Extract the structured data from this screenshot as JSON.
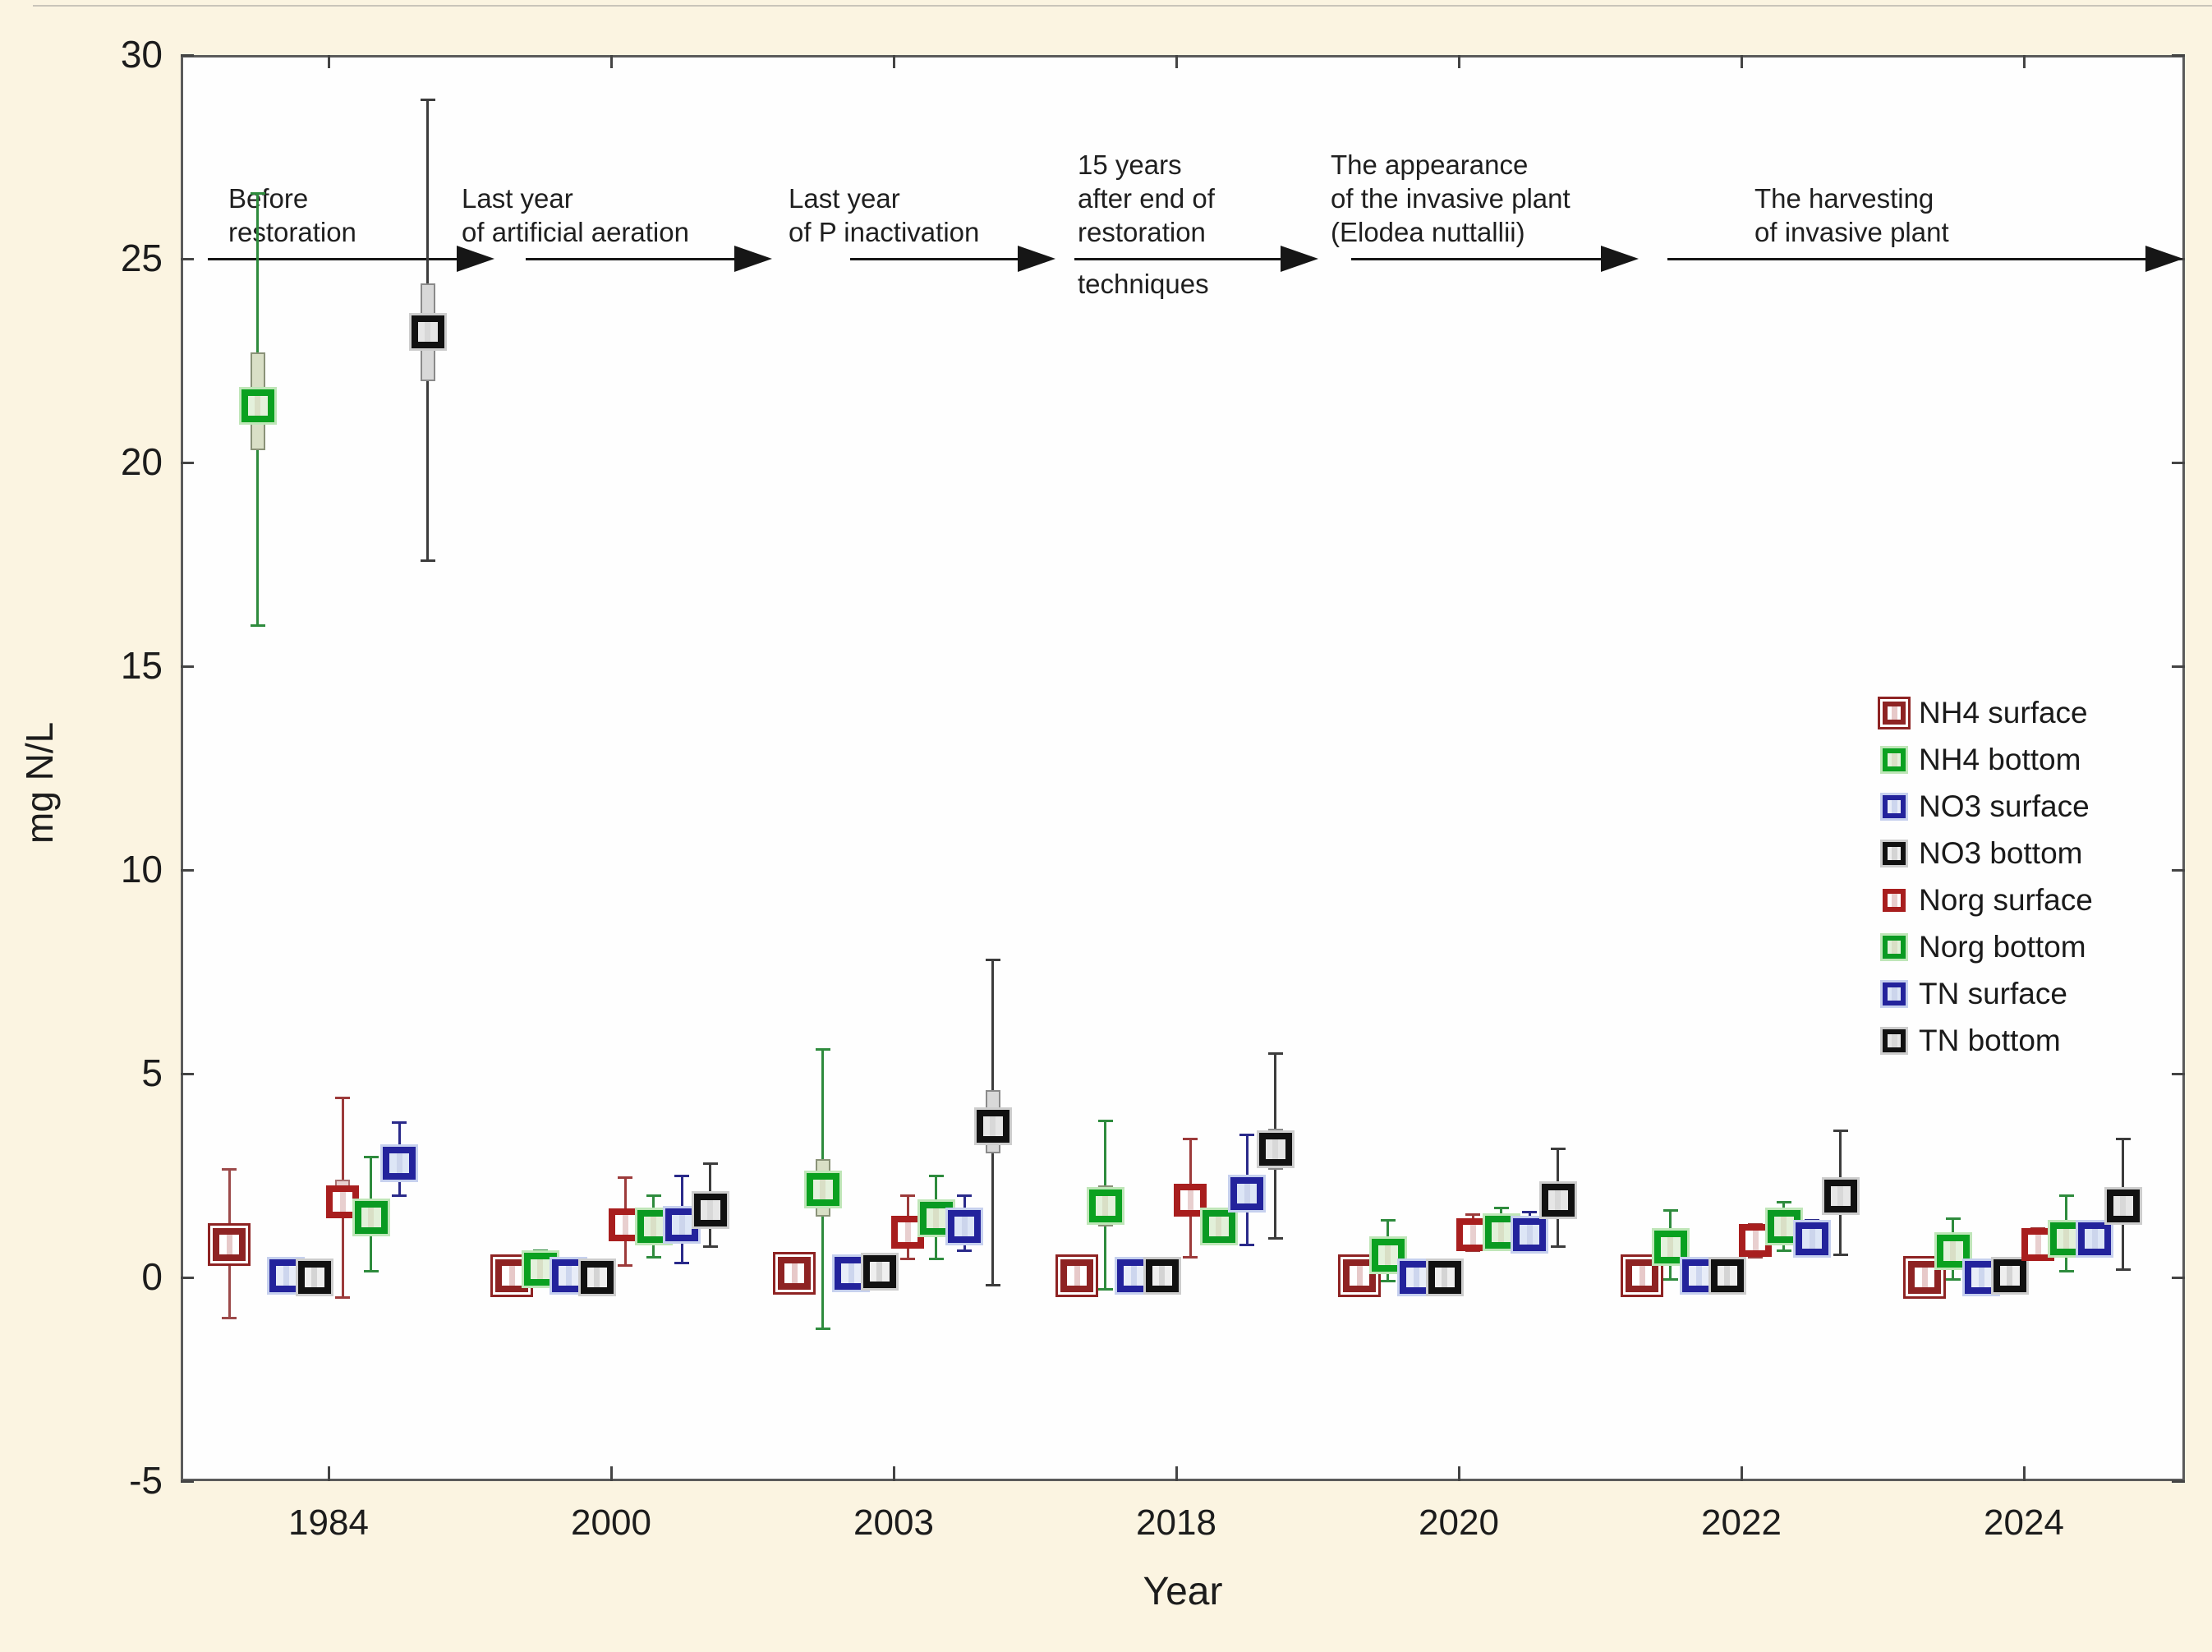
{
  "figure": {
    "background": "#fbf4e1",
    "plot_background": "#fefefe",
    "frame_color": "#5b5b5b",
    "text_color": "#1c1c1c",
    "arrow_color": "#161616"
  },
  "chart_data": {
    "type": "box",
    "xlabel": "Year",
    "ylabel": "mg N/L",
    "ylim": [
      -5,
      30
    ],
    "yticks": [
      30,
      25,
      20,
      15,
      10,
      5,
      0,
      -5
    ],
    "categories": [
      "1984",
      "2000",
      "2003",
      "2018",
      "2020",
      "2022",
      "2024"
    ],
    "grid": false,
    "legend_position": "inside-right",
    "series": [
      {
        "name": "NH4 surface",
        "color": "#8e2323",
        "fill": "#ffffff",
        "halo": null,
        "double": true,
        "box_fill": "#e7c9c9",
        "box_border": "#a87070",
        "whisker_color": "#9c4a4a",
        "median": [
          0.8,
          0.05,
          0.1,
          0.05,
          0.05,
          0.05,
          0.0
        ],
        "q1": [
          0.35,
          null,
          null,
          null,
          null,
          null,
          null
        ],
        "q3": [
          1.25,
          null,
          null,
          null,
          null,
          null,
          null
        ],
        "lo": [
          -1.0,
          null,
          null,
          null,
          null,
          null,
          null
        ],
        "hi": [
          2.65,
          null,
          null,
          null,
          null,
          null,
          null
        ]
      },
      {
        "name": "NH4 bottom",
        "color": "#0aa120",
        "fill": "#e4f1dc",
        "halo": "#bfe6b8",
        "double": false,
        "box_fill": "#d9dfc6",
        "box_border": "#8a9278",
        "whisker_color": "#2e8b3d",
        "median": [
          21.4,
          0.2,
          2.15,
          1.75,
          0.55,
          0.75,
          0.65
        ],
        "q1": [
          20.3,
          0.05,
          1.5,
          1.25,
          0.3,
          0.5,
          0.4
        ],
        "q3": [
          22.7,
          0.4,
          2.9,
          2.25,
          0.8,
          1.0,
          0.9
        ],
        "lo": [
          16.0,
          -0.1,
          -1.25,
          -0.3,
          -0.1,
          -0.05,
          -0.05
        ],
        "hi": [
          26.6,
          0.65,
          5.6,
          3.85,
          1.4,
          1.65,
          1.45
        ]
      },
      {
        "name": "NO3 surface",
        "color": "#23239c",
        "fill": "#e8edf8",
        "halo": "#c6d0ee",
        "double": false,
        "box_fill": "#cdd6ee",
        "box_border": "#6b76a8",
        "whisker_color": "#2a2a8a",
        "median": [
          0.05,
          0.05,
          0.1,
          0.05,
          0.0,
          0.05,
          0.0
        ],
        "q1": [
          null,
          null,
          null,
          null,
          null,
          null,
          null
        ],
        "q3": [
          null,
          null,
          null,
          null,
          null,
          null,
          null
        ],
        "lo": [
          null,
          null,
          null,
          null,
          null,
          null,
          null
        ],
        "hi": [
          null,
          null,
          null,
          null,
          null,
          null,
          null
        ]
      },
      {
        "name": "NO3 bottom",
        "color": "#111111",
        "fill": "#efefef",
        "halo": "#cdcdcd",
        "double": false,
        "box_fill": "#d4d4d4",
        "box_border": "#8a8a8a",
        "whisker_color": "#3c3c3c",
        "median": [
          0.0,
          0.0,
          0.15,
          0.05,
          0.0,
          0.05,
          0.05
        ],
        "q1": [
          null,
          null,
          null,
          null,
          null,
          null,
          null
        ],
        "q3": [
          null,
          null,
          null,
          null,
          null,
          null,
          null
        ],
        "lo": [
          null,
          null,
          null,
          null,
          null,
          null,
          null
        ],
        "hi": [
          null,
          null,
          null,
          null,
          null,
          null,
          null
        ]
      },
      {
        "name": "Norg surface",
        "color": "#a81e1e",
        "fill": "#ffffff",
        "halo": null,
        "double": false,
        "box_fill": "#e8cfcf",
        "box_border": "#a87070",
        "whisker_color": "#9c3a3a",
        "median": [
          1.85,
          1.3,
          1.1,
          1.9,
          1.05,
          0.9,
          0.8
        ],
        "q1": [
          1.5,
          1.0,
          0.85,
          1.6,
          0.85,
          0.7,
          0.6
        ],
        "q3": [
          2.4,
          1.6,
          1.4,
          2.2,
          1.25,
          1.1,
          1.0
        ],
        "lo": [
          -0.5,
          0.3,
          0.45,
          0.5,
          0.65,
          0.5,
          0.45
        ],
        "hi": [
          4.4,
          2.45,
          2.0,
          3.4,
          1.55,
          1.3,
          1.2
        ]
      },
      {
        "name": "Norg bottom",
        "color": "#0a9a22",
        "fill": "#e2f0d9",
        "halo": "#bfe6b8",
        "double": false,
        "box_fill": "#d9dfc6",
        "box_border": "#8a9278",
        "whisker_color": "#2e8b3d",
        "median": [
          1.47,
          1.25,
          1.45,
          1.25,
          1.1,
          1.25,
          0.95
        ],
        "q1": [
          1.2,
          0.8,
          1.2,
          1.0,
          0.9,
          1.0,
          0.75
        ],
        "q3": [
          1.8,
          1.7,
          1.75,
          1.5,
          1.3,
          1.5,
          1.2
        ],
        "lo": [
          0.15,
          0.5,
          0.45,
          0.9,
          0.75,
          0.65,
          0.15
        ],
        "hi": [
          2.95,
          2.0,
          2.5,
          1.6,
          1.7,
          1.85,
          2.0
        ]
      },
      {
        "name": "TN surface",
        "color": "#23239c",
        "fill": "#dde6f6",
        "halo": "#c6d0ee",
        "double": false,
        "box_fill": "#ccd5ec",
        "box_border": "#6b76a8",
        "whisker_color": "#2a2a8a",
        "median": [
          2.8,
          1.3,
          1.25,
          2.05,
          1.05,
          0.95,
          0.95
        ],
        "q1": [
          2.4,
          1.0,
          1.0,
          1.75,
          0.85,
          0.8,
          0.8
        ],
        "q3": [
          3.2,
          1.65,
          1.55,
          2.35,
          1.3,
          1.15,
          1.1
        ],
        "lo": [
          2.0,
          0.35,
          0.65,
          0.8,
          0.7,
          0.6,
          0.6
        ],
        "hi": [
          3.8,
          2.5,
          2.0,
          3.5,
          1.6,
          1.4,
          1.3
        ]
      },
      {
        "name": "TN bottom",
        "color": "#111111",
        "fill": "#e6e6e6",
        "halo": "#cdcdcd",
        "double": false,
        "box_fill": "#d8d8d8",
        "box_border": "#8a8a8a",
        "whisker_color": "#3c3c3c",
        "median": [
          23.2,
          1.65,
          3.7,
          3.15,
          1.9,
          2.0,
          1.75
        ],
        "q1": [
          22.0,
          1.3,
          3.05,
          2.65,
          1.55,
          1.6,
          1.4
        ],
        "q3": [
          24.4,
          2.05,
          4.6,
          3.65,
          2.25,
          2.4,
          2.1
        ],
        "lo": [
          17.6,
          0.75,
          -0.2,
          0.95,
          0.75,
          0.55,
          0.2
        ],
        "hi": [
          28.9,
          2.8,
          7.8,
          5.5,
          3.15,
          3.6,
          3.4
        ]
      }
    ],
    "annotations": [
      {
        "lines_above": [
          "Before",
          "restoration"
        ],
        "lines_below": [],
        "text_x": 278,
        "arrow_from": 253,
        "arrow_to": 602
      },
      {
        "lines_above": [
          "Last year",
          "of artificial aeration"
        ],
        "lines_below": [],
        "text_x": 562,
        "arrow_from": 640,
        "arrow_to": 940
      },
      {
        "lines_above": [
          "Last year",
          "of P inactivation"
        ],
        "lines_below": [],
        "text_x": 960,
        "arrow_from": 1035,
        "arrow_to": 1285
      },
      {
        "lines_above": [
          "15 years",
          "after end of",
          "restoration"
        ],
        "lines_below": [
          "techniques"
        ],
        "text_x": 1312,
        "arrow_from": 1308,
        "arrow_to": 1605
      },
      {
        "lines_above": [
          "The appearance",
          "of the invasive plant",
          "(Elodea nuttallii)"
        ],
        "lines_below": [],
        "text_x": 1620,
        "arrow_from": 1645,
        "arrow_to": 1995
      },
      {
        "lines_above": [
          "The harvesting",
          "of invasive plant"
        ],
        "lines_below": [],
        "text_x": 2136,
        "arrow_from": 2030,
        "arrow_to": 2658
      }
    ],
    "annotation_arrow_y_value": 25
  }
}
